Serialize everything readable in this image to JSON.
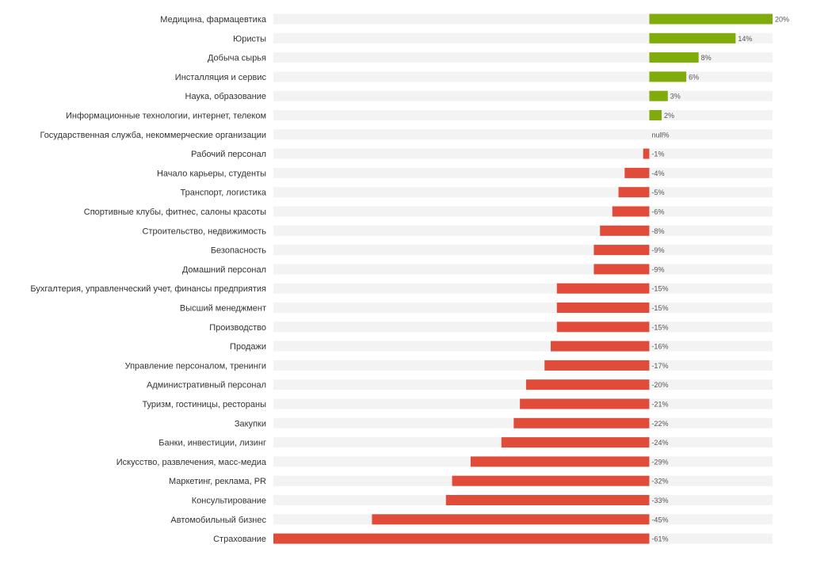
{
  "chart_data": {
    "type": "bar",
    "orientation": "horizontal",
    "title": "",
    "xlabel": "",
    "ylabel": "",
    "xlim": [
      -61,
      20
    ],
    "grid": false,
    "legend": "none",
    "colors": {
      "positive": "#7fac0a",
      "negative": "#e04b3a",
      "track": "#f3f3f3",
      "label": "#333333",
      "value_label": "#555555"
    },
    "categories": [
      "Медицина, фармацевтика",
      "Юристы",
      "Добыча сырья",
      "Инсталляция и сервис",
      "Наука, образование",
      "Информационные технологии, интернет, телеком",
      "Государственная служба, некоммерческие организации",
      "Рабочий персонал",
      "Начало карьеры, студенты",
      "Транспорт, логистика",
      "Спортивные клубы, фитнес, салоны красоты",
      "Строительство, недвижимость",
      "Безопасность",
      "Домашний персонал",
      "Бухгалтерия, управленческий учет, финансы предприятия",
      "Высший менеджмент",
      "Производство",
      "Продажи",
      "Управление персоналом, тренинги",
      "Административный персонал",
      "Туризм, гостиницы, рестораны",
      "Закупки",
      "Банки, инвестиции, лизинг",
      "Искусство, развлечения, масс-медиа",
      "Маркетинг, реклама, PR",
      "Консультирование",
      "Автомобильный бизнес",
      "Страхование"
    ],
    "values": [
      20,
      14,
      8,
      6,
      3,
      2,
      null,
      -1,
      -4,
      -5,
      -6,
      -8,
      -9,
      -9,
      -15,
      -15,
      -15,
      -16,
      -17,
      -20,
      -21,
      -22,
      -24,
      -29,
      -32,
      -33,
      -45,
      -61
    ],
    "value_labels": [
      "20%",
      "14%",
      "8%",
      "6%",
      "3%",
      "2%",
      "null%",
      "-1%",
      "-4%",
      "-5%",
      "-6%",
      "-8%",
      "-9%",
      "-9%",
      "-15%",
      "-15%",
      "-15%",
      "-16%",
      "-17%",
      "-20%",
      "-21%",
      "-22%",
      "-24%",
      "-29%",
      "-32%",
      "-33%",
      "-45%",
      "-61%"
    ]
  }
}
